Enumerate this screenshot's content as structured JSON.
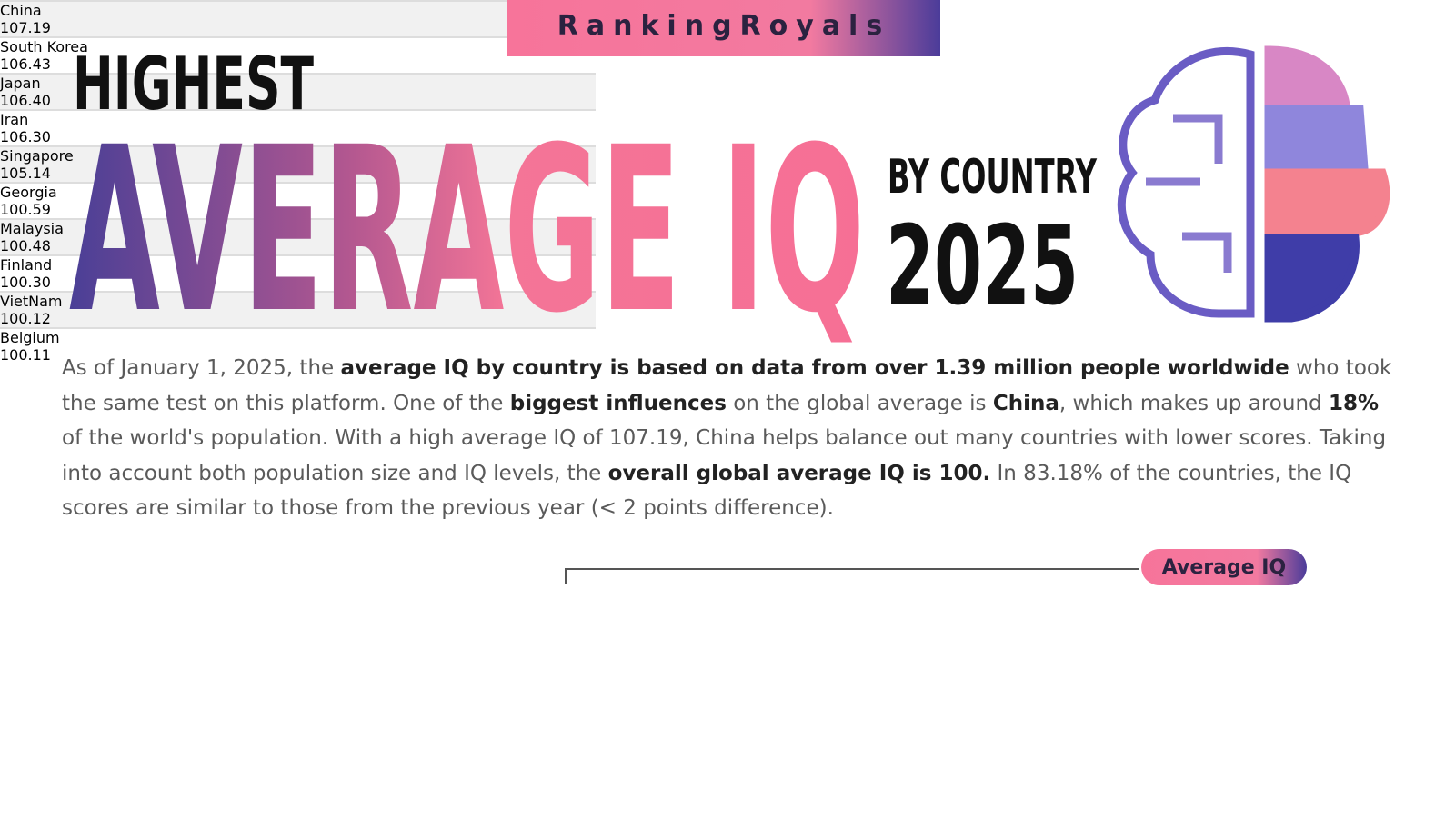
{
  "brand": "RankingRoyals",
  "header": {
    "highest": "HIGHEST",
    "title": "AVERAGE IQ",
    "by_country": "BY COUNTRY",
    "year": "2025"
  },
  "intro": [
    {
      "text": "As of January 1, 2025, the ",
      "bold": false
    },
    {
      "text": "average IQ by country is based on data from over 1.39 million people worldwide",
      "bold": true
    },
    {
      "text": " who took the same test on this platform. One of the ",
      "bold": false
    },
    {
      "text": "biggest influences",
      "bold": true
    },
    {
      "text": " on the global average is ",
      "bold": false
    },
    {
      "text": "China",
      "bold": true
    },
    {
      "text": ", which makes up around ",
      "bold": false
    },
    {
      "text": "18%",
      "bold": true
    },
    {
      "text": " of the world's population. With a high average IQ of 107.19, China helps balance out many countries with lower scores. Taking into account both population size and IQ levels, the ",
      "bold": false
    },
    {
      "text": "overall global average IQ is 100.",
      "bold": true
    },
    {
      "text": " In 83.18% of the countries, the IQ scores are similar to those from the previous year (< 2 points difference).",
      "bold": false
    }
  ],
  "column_label": "Average IQ",
  "table": {
    "left": [
      {
        "country": "China",
        "iq": "107.19"
      },
      {
        "country": "South Korea",
        "iq": "106.43"
      },
      {
        "country": "Japan",
        "iq": "106.40"
      },
      {
        "country": "Iran",
        "iq": "106.30"
      },
      {
        "country": "Singapore",
        "iq": "105.14"
      }
    ],
    "right": [
      {
        "country": "Georgia",
        "iq": "100.59"
      },
      {
        "country": "Malaysia",
        "iq": "100.48"
      },
      {
        "country": "Finland",
        "iq": "100.30"
      },
      {
        "country": "VietNam",
        "iq": "100.12"
      },
      {
        "country": "Belgium",
        "iq": "100.11"
      }
    ]
  }
}
